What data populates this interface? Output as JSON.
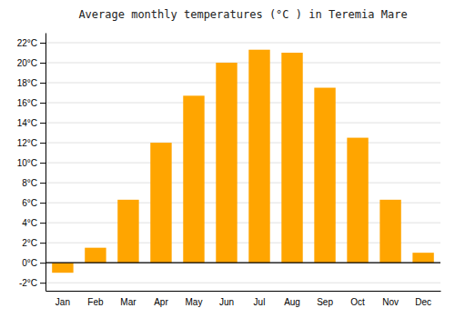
{
  "chart_data": {
    "type": "bar",
    "title": "Average monthly temperatures (°C ) in Teremia Mare",
    "categories": [
      "Jan",
      "Feb",
      "Mar",
      "Apr",
      "May",
      "Jun",
      "Jul",
      "Aug",
      "Sep",
      "Oct",
      "Nov",
      "Dec"
    ],
    "values": [
      -1.0,
      1.5,
      6.3,
      12.0,
      16.7,
      20.0,
      21.3,
      21.0,
      17.5,
      12.5,
      6.3,
      1.0
    ],
    "color": "#FFA500",
    "ylim": [
      -2.8,
      23.0
    ],
    "yticks": [
      {
        "value": -2,
        "label": "-2°C"
      },
      {
        "value": 0,
        "label": "0°C"
      },
      {
        "value": 2,
        "label": "2°C"
      },
      {
        "value": 4,
        "label": "4°C"
      },
      {
        "value": 6,
        "label": "6°C"
      },
      {
        "value": 8,
        "label": "8°C"
      },
      {
        "value": 10,
        "label": "10°C"
      },
      {
        "value": 12,
        "label": "12°C"
      },
      {
        "value": 14,
        "label": "14°C"
      },
      {
        "value": 16,
        "label": "16°C"
      },
      {
        "value": 18,
        "label": "18°C"
      },
      {
        "value": 20,
        "label": "20°C"
      },
      {
        "value": 22,
        "label": "22°C"
      }
    ],
    "grid": true
  }
}
